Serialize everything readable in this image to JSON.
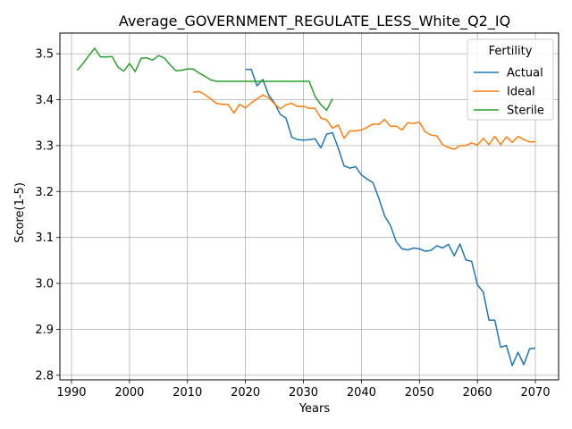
{
  "chart_data": {
    "type": "line",
    "title": "Average_GOVERNMENT_REGULATE_LESS_White_Q2_IQ",
    "xlabel": "Years",
    "ylabel": "Score(1-5)",
    "xlim": [
      1988,
      2074
    ],
    "ylim": [
      2.79,
      3.545
    ],
    "xticks": [
      1990,
      2000,
      2010,
      2020,
      2030,
      2040,
      2050,
      2060,
      2070
    ],
    "yticks": [
      2.8,
      2.9,
      3.0,
      3.1,
      3.2,
      3.3,
      3.4,
      3.5
    ],
    "grid": true,
    "legend": {
      "title": "Fertility",
      "placement": "top-right"
    },
    "series": [
      {
        "name": "Actual",
        "color": "#1f77b4",
        "x": [
          2020,
          2021,
          2022,
          2023,
          2024,
          2025,
          2026,
          2027,
          2028,
          2029,
          2030,
          2031,
          2032,
          2033,
          2034,
          2035,
          2036,
          2037,
          2038,
          2039,
          2040,
          2041,
          2042,
          2043,
          2044,
          2045,
          2046,
          2047,
          2048,
          2049,
          2050,
          2051,
          2052,
          2053,
          2054,
          2055,
          2056,
          2057,
          2058,
          2059,
          2060,
          2061,
          2062,
          2063,
          2064,
          2065,
          2066,
          2067,
          2068,
          2069,
          2070
        ],
        "y": [
          3.466,
          3.466,
          3.43,
          3.444,
          3.41,
          3.393,
          3.368,
          3.36,
          3.318,
          3.313,
          3.312,
          3.313,
          3.315,
          3.295,
          3.325,
          3.328,
          3.295,
          3.256,
          3.251,
          3.254,
          3.236,
          3.227,
          3.219,
          3.185,
          3.147,
          3.126,
          3.091,
          3.075,
          3.073,
          3.077,
          3.075,
          3.07,
          3.072,
          3.082,
          3.077,
          3.085,
          3.06,
          3.086,
          3.051,
          3.048,
          2.997,
          2.981,
          2.92,
          2.92,
          2.861,
          2.865,
          2.821,
          2.85,
          2.823,
          2.858,
          2.859
        ]
      },
      {
        "name": "Ideal",
        "color": "#ff7f0e",
        "x": [
          2011,
          2012,
          2013,
          2014,
          2015,
          2016,
          2017,
          2018,
          2019,
          2020,
          2021,
          2022,
          2023,
          2024,
          2025,
          2026,
          2027,
          2028,
          2029,
          2030,
          2031,
          2032,
          2033,
          2034,
          2035,
          2036,
          2037,
          2038,
          2039,
          2040,
          2041,
          2042,
          2043,
          2044,
          2045,
          2046,
          2047,
          2048,
          2049,
          2050,
          2051,
          2052,
          2053,
          2054,
          2055,
          2056,
          2057,
          2058,
          2059,
          2060,
          2061,
          2062,
          2063,
          2064,
          2065,
          2066,
          2067,
          2068,
          2069,
          2070
        ],
        "y": [
          3.416,
          3.418,
          3.411,
          3.402,
          3.392,
          3.39,
          3.39,
          3.371,
          3.39,
          3.382,
          3.393,
          3.402,
          3.41,
          3.404,
          3.391,
          3.38,
          3.389,
          3.392,
          3.385,
          3.386,
          3.381,
          3.381,
          3.36,
          3.356,
          3.338,
          3.345,
          3.316,
          3.332,
          3.332,
          3.334,
          3.34,
          3.347,
          3.346,
          3.357,
          3.342,
          3.342,
          3.334,
          3.35,
          3.348,
          3.351,
          3.33,
          3.323,
          3.321,
          3.302,
          3.296,
          3.292,
          3.3,
          3.3,
          3.306,
          3.301,
          3.316,
          3.302,
          3.32,
          3.302,
          3.319,
          3.307,
          3.32,
          3.313,
          3.308,
          3.308
        ]
      },
      {
        "name": "Sterile",
        "color": "#2ca02c",
        "x": [
          1991,
          1992,
          1993,
          1994,
          1995,
          1996,
          1997,
          1998,
          1999,
          2000,
          2001,
          2002,
          2003,
          2004,
          2005,
          2006,
          2007,
          2008,
          2009,
          2010,
          2011,
          2012,
          2013,
          2014,
          2015,
          2016,
          2017,
          2018,
          2019,
          2020,
          2021,
          2022,
          2023,
          2024,
          2025,
          2026,
          2027,
          2028,
          2029,
          2030,
          2031,
          2032,
          2033,
          2034,
          2035
        ],
        "y": [
          3.464,
          3.479,
          3.496,
          3.512,
          3.493,
          3.493,
          3.494,
          3.471,
          3.462,
          3.479,
          3.461,
          3.49,
          3.491,
          3.486,
          3.496,
          3.491,
          3.476,
          3.463,
          3.464,
          3.467,
          3.467,
          3.458,
          3.451,
          3.443,
          3.44,
          3.44,
          3.44,
          3.44,
          3.44,
          3.44,
          3.44,
          3.44,
          3.44,
          3.44,
          3.44,
          3.44,
          3.44,
          3.44,
          3.44,
          3.44,
          3.44,
          3.407,
          3.389,
          3.377,
          3.402
        ]
      }
    ]
  }
}
